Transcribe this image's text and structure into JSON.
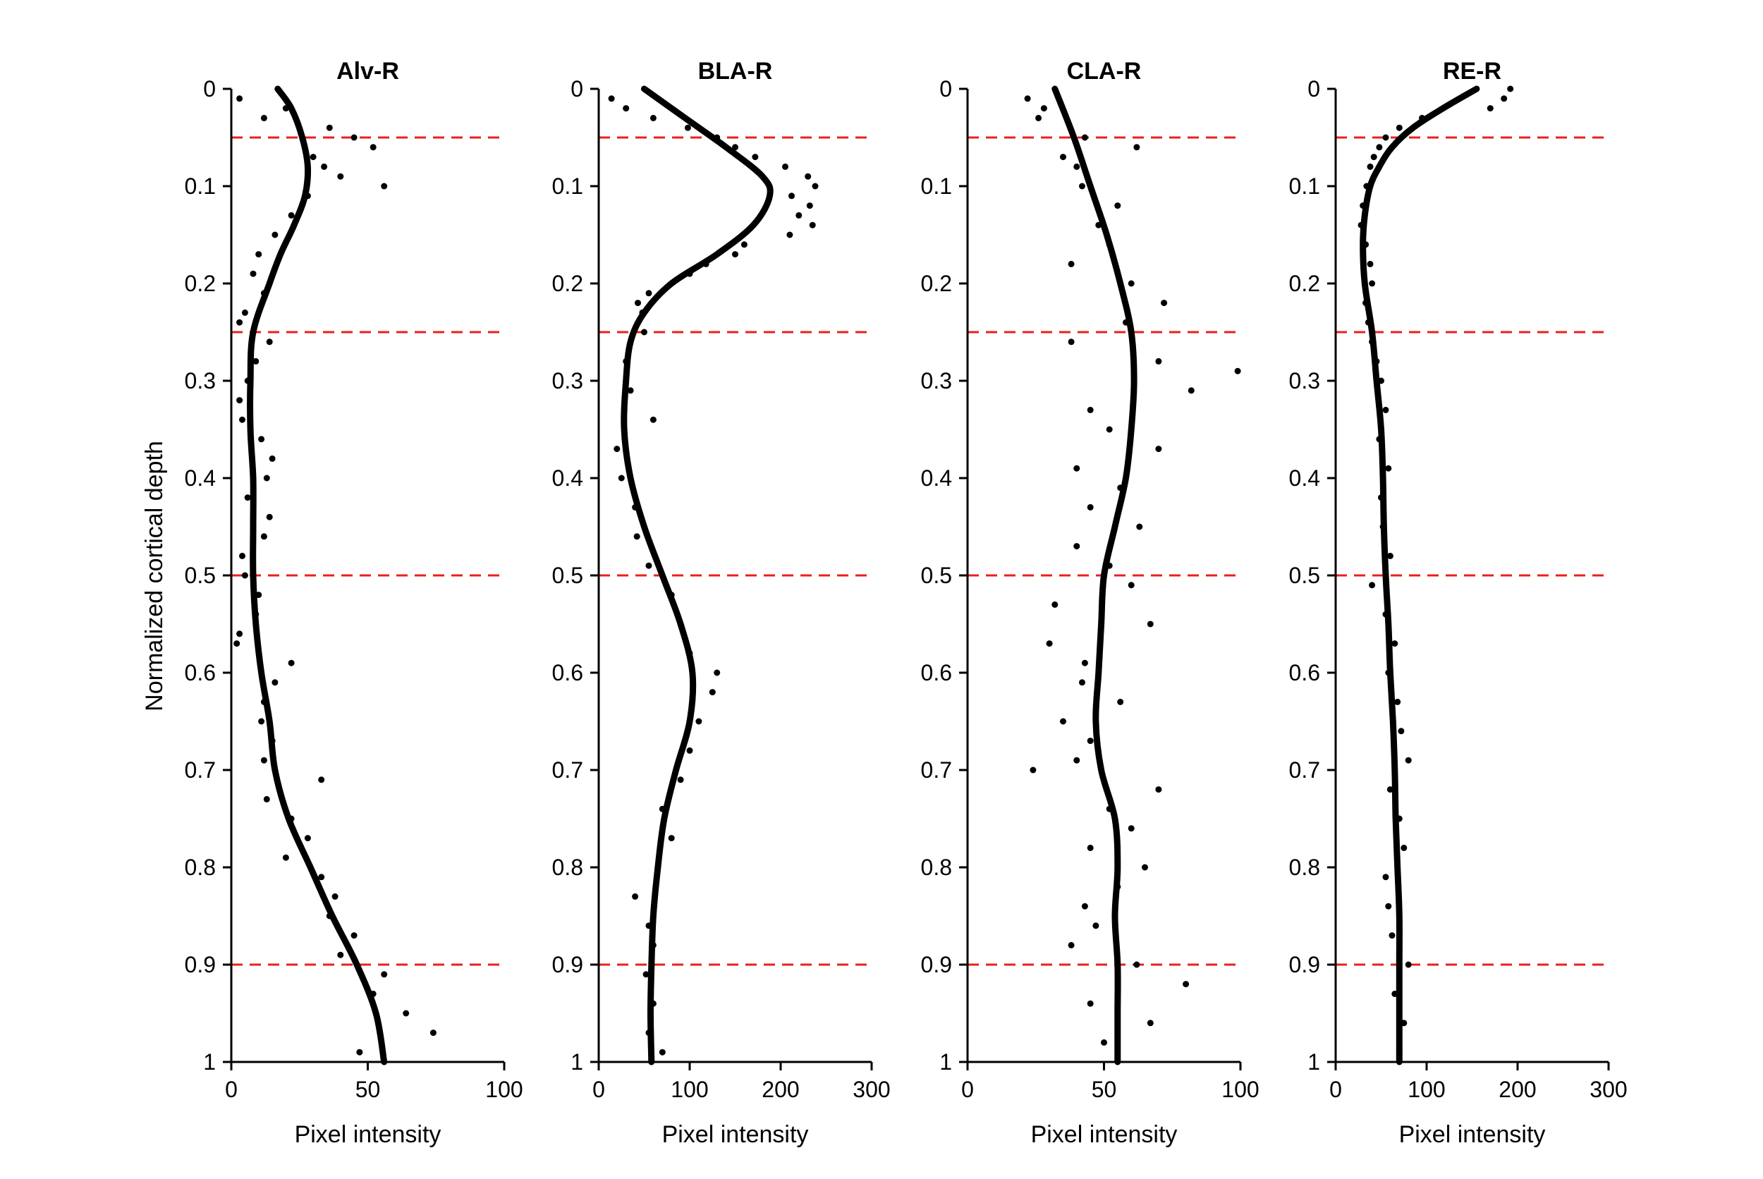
{
  "figure": {
    "ylabel": "Normalized cortical depth"
  },
  "chart_data": [
    {
      "type": "scatter",
      "title": "Alv-R",
      "xlabel": "Pixel intensity",
      "ylabel": "Normalized cortical depth",
      "xlim": [
        0,
        100
      ],
      "ylim": [
        1,
        0
      ],
      "xticks": [
        0,
        50,
        100
      ],
      "yticks": [
        0,
        0.1,
        0.2,
        0.3,
        0.4,
        0.5,
        0.6,
        0.7,
        0.8,
        0.9,
        1
      ],
      "reference_lines": [
        0.05,
        0.25,
        0.5,
        0.9
      ],
      "curve": {
        "y": [
          0,
          0.02,
          0.05,
          0.08,
          0.11,
          0.14,
          0.17,
          0.2,
          0.25,
          0.3,
          0.35,
          0.4,
          0.45,
          0.5,
          0.55,
          0.6,
          0.65,
          0.7,
          0.75,
          0.8,
          0.85,
          0.9,
          0.95,
          1.0
        ],
        "x": [
          17,
          22,
          26,
          28,
          27,
          23,
          18,
          14,
          8,
          7,
          7,
          8,
          8,
          8,
          9,
          11,
          14,
          16,
          21,
          29,
          37,
          46,
          53,
          56
        ]
      },
      "points": {
        "y": [
          0.01,
          0.02,
          0.03,
          0.04,
          0.05,
          0.06,
          0.07,
          0.08,
          0.09,
          0.1,
          0.11,
          0.13,
          0.15,
          0.17,
          0.19,
          0.21,
          0.23,
          0.24,
          0.26,
          0.28,
          0.3,
          0.32,
          0.34,
          0.36,
          0.38,
          0.4,
          0.42,
          0.44,
          0.46,
          0.48,
          0.5,
          0.52,
          0.54,
          0.56,
          0.57,
          0.59,
          0.61,
          0.63,
          0.65,
          0.67,
          0.69,
          0.71,
          0.73,
          0.75,
          0.77,
          0.79,
          0.81,
          0.83,
          0.85,
          0.87,
          0.89,
          0.91,
          0.93,
          0.95,
          0.97,
          0.99
        ],
        "x": [
          3,
          20,
          12,
          36,
          45,
          52,
          30,
          34,
          40,
          56,
          28,
          22,
          16,
          10,
          8,
          12,
          5,
          3,
          14,
          9,
          6,
          3,
          4,
          11,
          15,
          13,
          6,
          14,
          12,
          4,
          5,
          10,
          9,
          3,
          2,
          22,
          16,
          12,
          11,
          15,
          12,
          33,
          13,
          22,
          28,
          20,
          33,
          38,
          36,
          45,
          40,
          56,
          52,
          64,
          74,
          47
        ]
      }
    },
    {
      "type": "scatter",
      "title": "BLA-R",
      "xlabel": "Pixel intensity",
      "xlim": [
        0,
        300
      ],
      "ylim": [
        1,
        0
      ],
      "xticks": [
        0,
        100,
        200,
        300
      ],
      "yticks": [
        0,
        0.1,
        0.2,
        0.3,
        0.4,
        0.5,
        0.6,
        0.7,
        0.8,
        0.9,
        1
      ],
      "reference_lines": [
        0.05,
        0.25,
        0.5,
        0.9
      ],
      "curve": {
        "y": [
          0,
          0.03,
          0.06,
          0.09,
          0.11,
          0.14,
          0.17,
          0.2,
          0.23,
          0.26,
          0.3,
          0.35,
          0.4,
          0.45,
          0.5,
          0.55,
          0.6,
          0.65,
          0.7,
          0.75,
          0.8,
          0.85,
          0.9,
          0.95,
          1.0
        ],
        "x": [
          50,
          95,
          140,
          180,
          188,
          170,
          130,
          80,
          50,
          35,
          30,
          28,
          35,
          50,
          70,
          90,
          103,
          100,
          85,
          72,
          65,
          60,
          58,
          57,
          58
        ]
      },
      "points": {
        "y": [
          0.01,
          0.02,
          0.03,
          0.04,
          0.05,
          0.06,
          0.07,
          0.08,
          0.09,
          0.1,
          0.11,
          0.12,
          0.13,
          0.14,
          0.15,
          0.16,
          0.17,
          0.18,
          0.19,
          0.2,
          0.21,
          0.22,
          0.23,
          0.25,
          0.28,
          0.31,
          0.34,
          0.37,
          0.4,
          0.43,
          0.46,
          0.49,
          0.52,
          0.55,
          0.58,
          0.6,
          0.62,
          0.65,
          0.68,
          0.71,
          0.74,
          0.77,
          0.8,
          0.83,
          0.86,
          0.88,
          0.91,
          0.94,
          0.97,
          0.99
        ],
        "x": [
          14,
          30,
          60,
          98,
          130,
          150,
          172,
          205,
          230,
          238,
          212,
          232,
          220,
          235,
          210,
          160,
          150,
          118,
          100,
          80,
          55,
          43,
          48,
          50,
          30,
          35,
          60,
          20,
          25,
          40,
          42,
          55,
          80,
          90,
          100,
          130,
          125,
          110,
          100,
          90,
          70,
          80,
          65,
          40,
          55,
          60,
          52,
          60,
          55,
          70
        ]
      }
    },
    {
      "type": "scatter",
      "title": "CLA-R",
      "xlabel": "Pixel intensity",
      "xlim": [
        0,
        100
      ],
      "ylim": [
        1,
        0
      ],
      "xticks": [
        0,
        50,
        100
      ],
      "yticks": [
        0,
        0.1,
        0.2,
        0.3,
        0.4,
        0.5,
        0.6,
        0.7,
        0.8,
        0.9,
        1
      ],
      "reference_lines": [
        0.05,
        0.25,
        0.5,
        0.9
      ],
      "curve": {
        "y": [
          0,
          0.05,
          0.1,
          0.15,
          0.2,
          0.25,
          0.3,
          0.35,
          0.4,
          0.45,
          0.5,
          0.55,
          0.6,
          0.65,
          0.7,
          0.75,
          0.8,
          0.85,
          0.9,
          0.95,
          1.0
        ],
        "x": [
          32,
          39,
          45,
          51,
          56,
          60,
          61,
          60,
          58,
          54,
          50,
          49,
          48,
          47,
          49,
          54,
          55,
          54,
          55,
          55,
          55
        ]
      },
      "points": {
        "y": [
          0.01,
          0.02,
          0.03,
          0.05,
          0.06,
          0.07,
          0.08,
          0.1,
          0.12,
          0.14,
          0.16,
          0.18,
          0.2,
          0.22,
          0.24,
          0.26,
          0.28,
          0.29,
          0.31,
          0.33,
          0.35,
          0.37,
          0.39,
          0.41,
          0.43,
          0.45,
          0.47,
          0.49,
          0.51,
          0.53,
          0.55,
          0.57,
          0.59,
          0.61,
          0.63,
          0.65,
          0.67,
          0.69,
          0.7,
          0.72,
          0.74,
          0.76,
          0.78,
          0.8,
          0.82,
          0.84,
          0.86,
          0.88,
          0.9,
          0.92,
          0.94,
          0.96,
          0.98
        ],
        "x": [
          22,
          28,
          26,
          43,
          62,
          35,
          40,
          42,
          55,
          48,
          52,
          38,
          60,
          72,
          58,
          38,
          70,
          99,
          82,
          45,
          52,
          70,
          40,
          56,
          45,
          63,
          40,
          52,
          60,
          32,
          67,
          30,
          43,
          42,
          56,
          35,
          45,
          40,
          24,
          70,
          52,
          60,
          45,
          65,
          55,
          43,
          47,
          38,
          62,
          80,
          45,
          67,
          50
        ]
      }
    },
    {
      "type": "scatter",
      "title": "RE-R",
      "xlabel": "Pixel intensity",
      "xlim": [
        0,
        300
      ],
      "ylim": [
        1,
        0
      ],
      "xticks": [
        0,
        100,
        200,
        300
      ],
      "yticks": [
        0,
        0.1,
        0.2,
        0.3,
        0.4,
        0.5,
        0.6,
        0.7,
        0.8,
        0.9,
        1
      ],
      "reference_lines": [
        0.05,
        0.25,
        0.5,
        0.9
      ],
      "curve": {
        "y": [
          0,
          0.02,
          0.04,
          0.06,
          0.08,
          0.1,
          0.13,
          0.16,
          0.2,
          0.25,
          0.3,
          0.35,
          0.4,
          0.45,
          0.5,
          0.55,
          0.6,
          0.65,
          0.7,
          0.75,
          0.8,
          0.85,
          0.9,
          0.95,
          1.0
        ],
        "x": [
          155,
          118,
          85,
          62,
          48,
          38,
          32,
          30,
          32,
          40,
          45,
          50,
          52,
          53,
          55,
          58,
          60,
          63,
          65,
          66,
          68,
          70,
          70,
          70,
          70
        ]
      },
      "points": {
        "y": [
          0.0,
          0.01,
          0.02,
          0.03,
          0.04,
          0.05,
          0.06,
          0.07,
          0.08,
          0.1,
          0.12,
          0.14,
          0.16,
          0.18,
          0.2,
          0.22,
          0.24,
          0.26,
          0.28,
          0.3,
          0.33,
          0.36,
          0.39,
          0.42,
          0.45,
          0.48,
          0.51,
          0.54,
          0.57,
          0.6,
          0.63,
          0.66,
          0.69,
          0.72,
          0.75,
          0.78,
          0.81,
          0.84,
          0.87,
          0.9,
          0.93,
          0.96,
          0.99
        ],
        "x": [
          192,
          185,
          170,
          95,
          70,
          55,
          48,
          42,
          38,
          34,
          30,
          28,
          33,
          38,
          40,
          33,
          36,
          40,
          45,
          50,
          55,
          48,
          58,
          50,
          52,
          60,
          40,
          55,
          65,
          58,
          68,
          72,
          80,
          60,
          70,
          75,
          55,
          58,
          62,
          80,
          65,
          75,
          70
        ]
      }
    }
  ]
}
